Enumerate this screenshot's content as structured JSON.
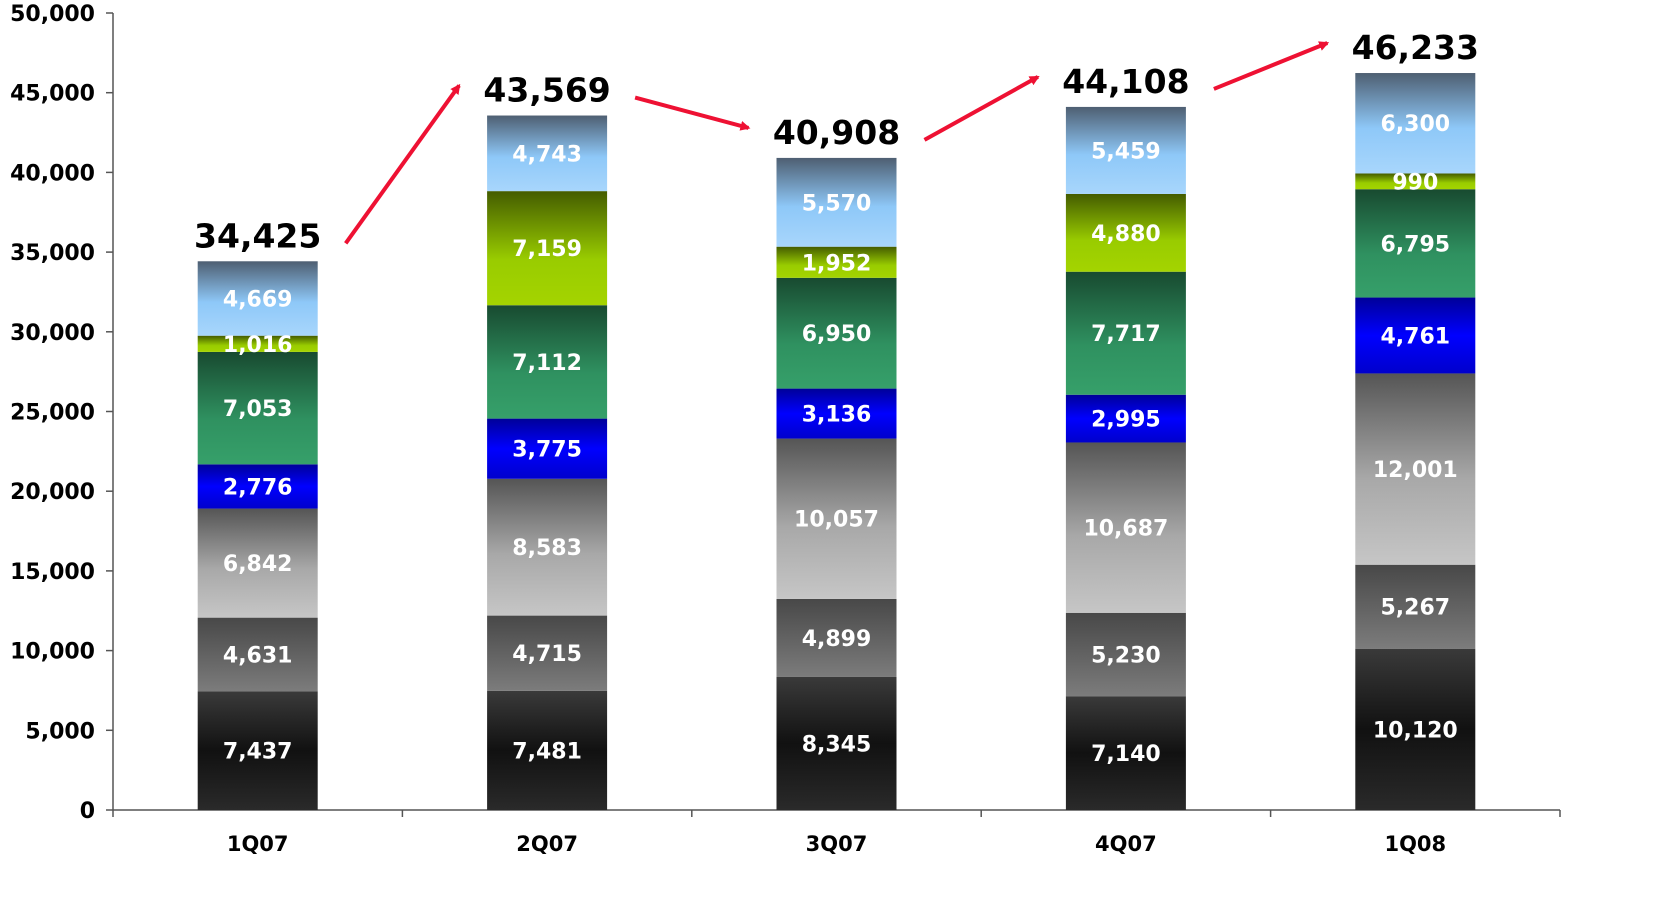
{
  "chart_data": {
    "type": "bar",
    "stacked": true,
    "categories": [
      "1Q07",
      "2Q07",
      "3Q07",
      "4Q07",
      "1Q08"
    ],
    "ylim": [
      0,
      50000
    ],
    "yticks": [
      0,
      5000,
      10000,
      15000,
      20000,
      25000,
      30000,
      35000,
      40000,
      45000,
      50000
    ],
    "ytick_labels": [
      "0",
      "5,000",
      "10,000",
      "15,000",
      "20,000",
      "25,000",
      "30,000",
      "35,000",
      "40,000",
      "45,000",
      "50,000"
    ],
    "series": [
      {
        "values": [
          7437,
          7481,
          8345,
          7140,
          10120
        ],
        "labels": [
          "7,437",
          "7,481",
          "8,345",
          "7,140",
          "10,120"
        ],
        "color": "#222222",
        "fill": "g-black"
      },
      {
        "values": [
          4631,
          4715,
          4899,
          5230,
          5267
        ],
        "labels": [
          "4,631",
          "4,715",
          "4,899",
          "5,230",
          "5,267"
        ],
        "color": "#555555",
        "fill": "g-darkgray"
      },
      {
        "values": [
          6842,
          8583,
          10057,
          10687,
          12001
        ],
        "labels": [
          "6,842",
          "8,583",
          "10,057",
          "10,687",
          "12,001"
        ],
        "color": "#9a9a9a",
        "fill": "g-lightgray"
      },
      {
        "values": [
          2776,
          3775,
          3136,
          2995,
          4761
        ],
        "labels": [
          "2,776",
          "3,775",
          "3,136",
          "2,995",
          "4,761"
        ],
        "color": "#0000dd",
        "fill": "g-blue"
      },
      {
        "values": [
          7053,
          7112,
          6950,
          7717,
          6795
        ],
        "labels": [
          "7,053",
          "7,112",
          "6,950",
          "7,717",
          "6,795"
        ],
        "color": "#2e8b57",
        "fill": "g-green"
      },
      {
        "values": [
          1016,
          7159,
          1952,
          4880,
          990
        ],
        "labels": [
          "1,016",
          "7,159",
          "1,952",
          "4,880",
          "990"
        ],
        "color": "#99cc00",
        "fill": "g-lime"
      },
      {
        "values": [
          4669,
          4743,
          5570,
          5459,
          6300
        ],
        "labels": [
          "4,669",
          "4,743",
          "5,570",
          "5,459",
          "6,300"
        ],
        "color": "#8ec8f8",
        "fill": "g-sky"
      }
    ],
    "totals": [
      34425,
      43569,
      40908,
      44108,
      46233
    ],
    "total_labels": [
      "34,425",
      "43,569",
      "40,908",
      "44,108",
      "46,233"
    ],
    "trend_arrow_color": "#ee1133",
    "grid": false,
    "legend": "none"
  }
}
